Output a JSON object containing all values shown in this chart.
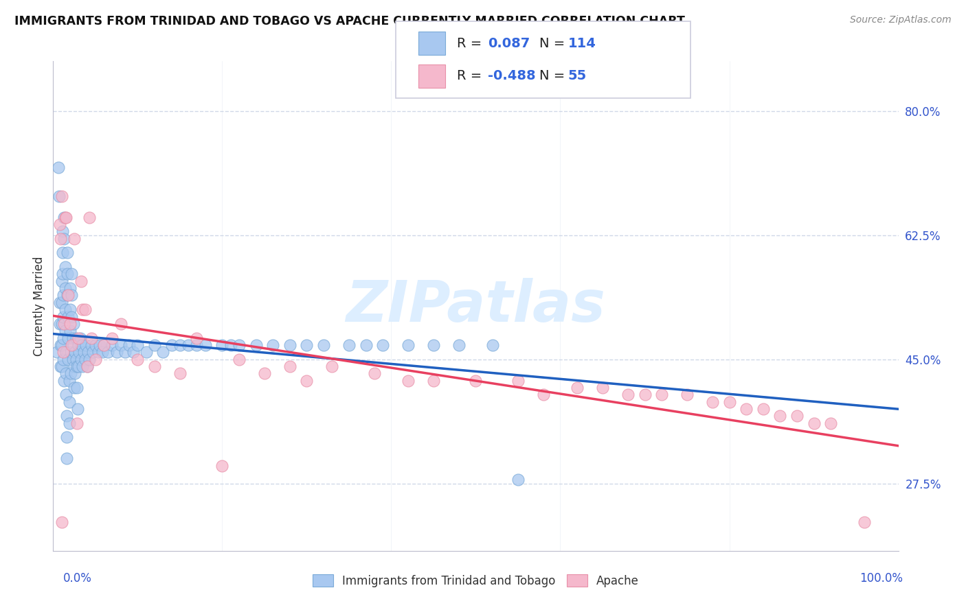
{
  "title": "IMMIGRANTS FROM TRINIDAD AND TOBAGO VS APACHE CURRENTLY MARRIED CORRELATION CHART",
  "source": "Source: ZipAtlas.com",
  "ylabel": "Currently Married",
  "legend_label1": "Immigrants from Trinidad and Tobago",
  "legend_label2": "Apache",
  "R1": 0.087,
  "N1": 114,
  "R2": -0.488,
  "N2": 55,
  "blue_color": "#a8c8f0",
  "blue_edge_color": "#7aaad8",
  "pink_color": "#f5b8cc",
  "pink_edge_color": "#e890a8",
  "blue_line_color": "#2060c0",
  "pink_line_color": "#e84060",
  "dashed_line_color": "#a0c0e8",
  "watermark_color": "#ddeeff",
  "background_color": "#ffffff",
  "grid_color": "#d0d8e8",
  "xlim": [
    0.0,
    1.0
  ],
  "ylim": [
    0.18,
    0.87
  ],
  "yticks": [
    0.275,
    0.45,
    0.625,
    0.8
  ],
  "ytick_labels": [
    "27.5%",
    "45.0%",
    "62.5%",
    "80.0%"
  ],
  "blue_x": [
    0.005,
    0.006,
    0.007,
    0.008,
    0.008,
    0.009,
    0.009,
    0.01,
    0.01,
    0.01,
    0.01,
    0.01,
    0.011,
    0.011,
    0.011,
    0.012,
    0.012,
    0.012,
    0.012,
    0.013,
    0.013,
    0.013,
    0.014,
    0.014,
    0.014,
    0.014,
    0.015,
    0.015,
    0.015,
    0.016,
    0.016,
    0.016,
    0.017,
    0.017,
    0.017,
    0.018,
    0.018,
    0.018,
    0.019,
    0.019,
    0.019,
    0.02,
    0.02,
    0.02,
    0.021,
    0.021,
    0.022,
    0.022,
    0.022,
    0.023,
    0.023,
    0.024,
    0.024,
    0.025,
    0.025,
    0.026,
    0.026,
    0.027,
    0.027,
    0.028,
    0.028,
    0.029,
    0.03,
    0.03,
    0.031,
    0.032,
    0.033,
    0.034,
    0.035,
    0.036,
    0.038,
    0.039,
    0.04,
    0.041,
    0.043,
    0.045,
    0.047,
    0.05,
    0.053,
    0.055,
    0.058,
    0.06,
    0.065,
    0.07,
    0.075,
    0.08,
    0.085,
    0.09,
    0.095,
    0.1,
    0.11,
    0.12,
    0.13,
    0.14,
    0.15,
    0.16,
    0.17,
    0.18,
    0.2,
    0.21,
    0.22,
    0.24,
    0.26,
    0.28,
    0.3,
    0.32,
    0.35,
    0.37,
    0.39,
    0.42,
    0.45,
    0.48,
    0.52,
    0.55
  ],
  "blue_y": [
    0.46,
    0.72,
    0.68,
    0.53,
    0.5,
    0.47,
    0.44,
    0.56,
    0.53,
    0.5,
    0.47,
    0.44,
    0.63,
    0.6,
    0.57,
    0.54,
    0.51,
    0.48,
    0.45,
    0.42,
    0.65,
    0.62,
    0.58,
    0.55,
    0.52,
    0.49,
    0.46,
    0.43,
    0.4,
    0.37,
    0.34,
    0.31,
    0.6,
    0.57,
    0.54,
    0.51,
    0.48,
    0.45,
    0.42,
    0.39,
    0.36,
    0.55,
    0.52,
    0.49,
    0.46,
    0.43,
    0.57,
    0.54,
    0.51,
    0.48,
    0.45,
    0.5,
    0.47,
    0.44,
    0.41,
    0.46,
    0.43,
    0.48,
    0.45,
    0.44,
    0.41,
    0.38,
    0.47,
    0.44,
    0.46,
    0.48,
    0.45,
    0.47,
    0.44,
    0.46,
    0.45,
    0.47,
    0.44,
    0.46,
    0.45,
    0.47,
    0.46,
    0.47,
    0.46,
    0.47,
    0.46,
    0.47,
    0.46,
    0.47,
    0.46,
    0.47,
    0.46,
    0.47,
    0.46,
    0.47,
    0.46,
    0.47,
    0.46,
    0.47,
    0.47,
    0.47,
    0.47,
    0.47,
    0.47,
    0.47,
    0.47,
    0.47,
    0.47,
    0.47,
    0.47,
    0.47,
    0.47,
    0.47,
    0.47,
    0.47,
    0.47,
    0.47,
    0.47,
    0.28
  ],
  "pink_x": [
    0.008,
    0.009,
    0.01,
    0.01,
    0.012,
    0.013,
    0.014,
    0.015,
    0.018,
    0.02,
    0.022,
    0.025,
    0.028,
    0.03,
    0.033,
    0.035,
    0.038,
    0.04,
    0.043,
    0.045,
    0.05,
    0.06,
    0.07,
    0.08,
    0.1,
    0.12,
    0.15,
    0.17,
    0.2,
    0.22,
    0.25,
    0.28,
    0.3,
    0.33,
    0.38,
    0.42,
    0.45,
    0.5,
    0.55,
    0.58,
    0.62,
    0.65,
    0.68,
    0.7,
    0.72,
    0.75,
    0.78,
    0.8,
    0.82,
    0.84,
    0.86,
    0.88,
    0.9,
    0.92,
    0.96
  ],
  "pink_y": [
    0.64,
    0.62,
    0.68,
    0.22,
    0.46,
    0.5,
    0.65,
    0.65,
    0.54,
    0.5,
    0.47,
    0.62,
    0.36,
    0.48,
    0.56,
    0.52,
    0.52,
    0.44,
    0.65,
    0.48,
    0.45,
    0.47,
    0.48,
    0.5,
    0.45,
    0.44,
    0.43,
    0.48,
    0.3,
    0.45,
    0.43,
    0.44,
    0.42,
    0.44,
    0.43,
    0.42,
    0.42,
    0.42,
    0.42,
    0.4,
    0.41,
    0.41,
    0.4,
    0.4,
    0.4,
    0.4,
    0.39,
    0.39,
    0.38,
    0.38,
    0.37,
    0.37,
    0.36,
    0.36,
    0.22
  ]
}
